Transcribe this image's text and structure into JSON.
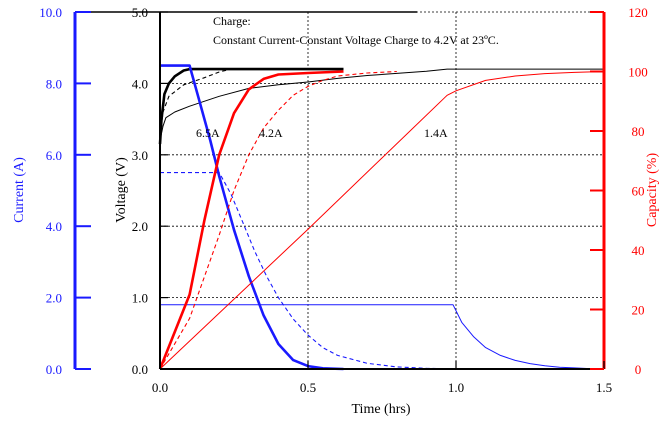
{
  "colors": {
    "current": "#1a1aff",
    "voltage": "#000000",
    "capacity": "#ff0000",
    "grid": "#000000"
  },
  "chart_data": {
    "type": "line",
    "annotation": [
      "Charge:",
      "Constant Current-Constant Voltage Charge to 4.2V at 23ºC."
    ],
    "grid": true,
    "x_axis": {
      "label": "Time (hrs)",
      "range": [
        0,
        1.5
      ],
      "ticks": [
        0,
        0.5,
        1.0,
        1.5
      ],
      "tick_labels": [
        "0.0",
        "0.5",
        "1.0",
        "1.5"
      ]
    },
    "y_axes": {
      "current": {
        "label": "Current (A)",
        "range": [
          0,
          10
        ],
        "ticks": [
          0,
          2,
          4,
          6,
          8,
          10
        ],
        "tick_labels": [
          "0.0",
          "2.0",
          "4.0",
          "6.0",
          "8.0",
          "10.0"
        ],
        "color": "#1a1aff"
      },
      "voltage": {
        "label": "Voltage (V)",
        "range": [
          0,
          5
        ],
        "ticks": [
          0,
          1,
          2,
          3,
          4,
          5
        ],
        "tick_labels": [
          "0.0",
          "1.0",
          "2.0",
          "3.0",
          "4.0",
          "5.0"
        ],
        "color": "#000000"
      },
      "capacity": {
        "label": "Capacity (%)",
        "range": [
          0,
          120
        ],
        "ticks": [
          0,
          20,
          40,
          60,
          80,
          100,
          120
        ],
        "tick_labels": [
          "0",
          "20",
          "40",
          "60",
          "80",
          "100",
          "120"
        ],
        "color": "#ff0000"
      }
    },
    "series_labels": [
      "6.5A",
      "4.2A",
      "1.4A"
    ],
    "series": [
      {
        "rate": "6.5A",
        "quantity": "voltage",
        "style": "thick",
        "points": [
          [
            0,
            3.15
          ],
          [
            0.005,
            3.5
          ],
          [
            0.015,
            3.85
          ],
          [
            0.03,
            4.0
          ],
          [
            0.05,
            4.1
          ],
          [
            0.08,
            4.18
          ],
          [
            0.1,
            4.2
          ],
          [
            0.2,
            4.2
          ],
          [
            0.62,
            4.2
          ]
        ]
      },
      {
        "rate": "4.2A",
        "quantity": "voltage",
        "style": "dashed",
        "points": [
          [
            0,
            3.2
          ],
          [
            0.01,
            3.6
          ],
          [
            0.03,
            3.82
          ],
          [
            0.08,
            3.98
          ],
          [
            0.15,
            4.08
          ],
          [
            0.2,
            4.16
          ],
          [
            0.24,
            4.2
          ],
          [
            0.4,
            4.2
          ],
          [
            0.62,
            4.2
          ]
        ]
      },
      {
        "rate": "1.4A",
        "quantity": "voltage",
        "style": "thin",
        "points": [
          [
            0,
            3.2
          ],
          [
            0.01,
            3.4
          ],
          [
            0.02,
            3.52
          ],
          [
            0.05,
            3.6
          ],
          [
            0.1,
            3.68
          ],
          [
            0.2,
            3.82
          ],
          [
            0.3,
            3.93
          ],
          [
            0.4,
            3.98
          ],
          [
            0.5,
            4.02
          ],
          [
            0.6,
            4.07
          ],
          [
            0.7,
            4.11
          ],
          [
            0.8,
            4.14
          ],
          [
            0.9,
            4.17
          ],
          [
            0.97,
            4.2
          ],
          [
            1.5,
            4.2
          ]
        ]
      },
      {
        "rate": "6.5A",
        "quantity": "current",
        "style": "thick",
        "points": [
          [
            0,
            8.5
          ],
          [
            0.1,
            8.5
          ],
          [
            0.13,
            7.6
          ],
          [
            0.17,
            6.4
          ],
          [
            0.2,
            5.4
          ],
          [
            0.25,
            3.9
          ],
          [
            0.3,
            2.6
          ],
          [
            0.35,
            1.5
          ],
          [
            0.4,
            0.7
          ],
          [
            0.45,
            0.25
          ],
          [
            0.5,
            0.08
          ],
          [
            0.55,
            0.02
          ],
          [
            0.62,
            0.0
          ]
        ]
      },
      {
        "rate": "4.2A",
        "quantity": "current",
        "style": "dashed",
        "points": [
          [
            0,
            5.5
          ],
          [
            0.2,
            5.5
          ],
          [
            0.24,
            4.9
          ],
          [
            0.28,
            4.1
          ],
          [
            0.32,
            3.3
          ],
          [
            0.36,
            2.6
          ],
          [
            0.4,
            2.0
          ],
          [
            0.45,
            1.4
          ],
          [
            0.5,
            0.95
          ],
          [
            0.55,
            0.6
          ],
          [
            0.6,
            0.38
          ],
          [
            0.7,
            0.16
          ],
          [
            0.8,
            0.06
          ],
          [
            0.9,
            0.02
          ],
          [
            1.0,
            0.0
          ]
        ]
      },
      {
        "rate": "1.4A",
        "quantity": "current",
        "style": "thin",
        "points": [
          [
            0,
            1.8
          ],
          [
            0.99,
            1.8
          ],
          [
            1.02,
            1.3
          ],
          [
            1.06,
            0.9
          ],
          [
            1.1,
            0.6
          ],
          [
            1.15,
            0.38
          ],
          [
            1.2,
            0.24
          ],
          [
            1.25,
            0.15
          ],
          [
            1.3,
            0.09
          ],
          [
            1.35,
            0.05
          ],
          [
            1.4,
            0.03
          ],
          [
            1.45,
            0.01
          ],
          [
            1.5,
            0.0
          ]
        ]
      },
      {
        "rate": "6.5A",
        "quantity": "capacity",
        "style": "thick",
        "points": [
          [
            0,
            0
          ],
          [
            0.1,
            25
          ],
          [
            0.15,
            50
          ],
          [
            0.2,
            72
          ],
          [
            0.25,
            86
          ],
          [
            0.3,
            94
          ],
          [
            0.35,
            97.5
          ],
          [
            0.4,
            99
          ],
          [
            0.5,
            99.5
          ],
          [
            0.62,
            100
          ]
        ]
      },
      {
        "rate": "4.2A",
        "quantity": "capacity",
        "style": "dashed",
        "points": [
          [
            0,
            0
          ],
          [
            0.1,
            17
          ],
          [
            0.2,
            45
          ],
          [
            0.25,
            60
          ],
          [
            0.3,
            72
          ],
          [
            0.35,
            81
          ],
          [
            0.4,
            87
          ],
          [
            0.45,
            92
          ],
          [
            0.5,
            95
          ],
          [
            0.55,
            97
          ],
          [
            0.6,
            98.5
          ],
          [
            0.7,
            99.5
          ],
          [
            0.8,
            100
          ]
        ]
      },
      {
        "rate": "1.4A",
        "quantity": "capacity",
        "style": "thin",
        "points": [
          [
            0,
            0
          ],
          [
            0.5,
            47
          ],
          [
            0.97,
            92
          ],
          [
            1.0,
            93.5
          ],
          [
            1.1,
            97
          ],
          [
            1.2,
            98.5
          ],
          [
            1.3,
            99.3
          ],
          [
            1.4,
            99.7
          ],
          [
            1.5,
            100
          ]
        ]
      }
    ]
  }
}
